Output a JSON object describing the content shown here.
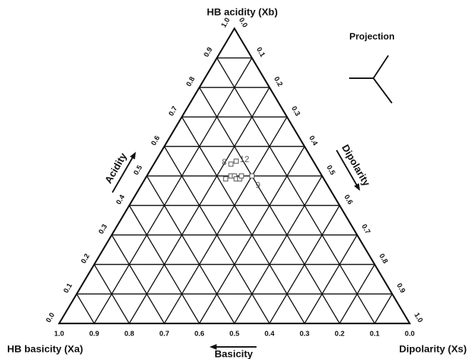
{
  "chart_data": {
    "type": "ternary",
    "projection_label": "Projection",
    "a_label": "HB basicity (Xa)",
    "b_label": "HB acidity (Xb)",
    "s_label": "Dipolarity (Xs)",
    "a_arrow": "Basicity",
    "b_arrow": "Acidity",
    "s_arrow": "Dipolarity",
    "a_ticks": [
      {
        "value": 0,
        "label": "0.0"
      },
      0.1,
      0.2,
      0.3,
      0.4,
      0.5,
      0.6,
      0.7,
      0.8,
      0.9,
      {
        "value": 1,
        "label": "1.0"
      }
    ],
    "b_ticks": [
      {
        "value": 0,
        "label": "0.0"
      },
      0.1,
      0.2,
      0.3,
      0.4,
      0.5,
      0.6,
      0.7,
      0.8,
      0.9,
      {
        "value": 1,
        "label": "1.0"
      }
    ],
    "s_ticks": [
      {
        "value": 0,
        "label": "0.0"
      },
      0.1,
      0.2,
      0.3,
      0.4,
      0.5,
      0.6,
      0.7,
      0.8,
      0.9,
      {
        "value": 1,
        "label": "1.0"
      }
    ],
    "grid": true,
    "marker_color": "#666666",
    "points": [
      {
        "xa": 0.24,
        "xb": 0.54,
        "xs": 0.22,
        "label": "8"
      },
      {
        "xa": 0.22,
        "xb": 0.55,
        "xs": 0.23,
        "label": "12"
      },
      {
        "xa": 0.28,
        "xb": 0.49,
        "xs": 0.23
      },
      {
        "xa": 0.26,
        "xb": 0.5,
        "xs": 0.24
      },
      {
        "xa": 0.25,
        "xb": 0.5,
        "xs": 0.25
      },
      {
        "xa": 0.25,
        "xb": 0.49,
        "xs": 0.26
      },
      {
        "xa": 0.24,
        "xb": 0.49,
        "xs": 0.27
      },
      {
        "xa": 0.23,
        "xb": 0.5,
        "xs": 0.27
      },
      {
        "xa": 0.2,
        "xb": 0.5,
        "xs": 0.3,
        "label": "9"
      }
    ]
  }
}
